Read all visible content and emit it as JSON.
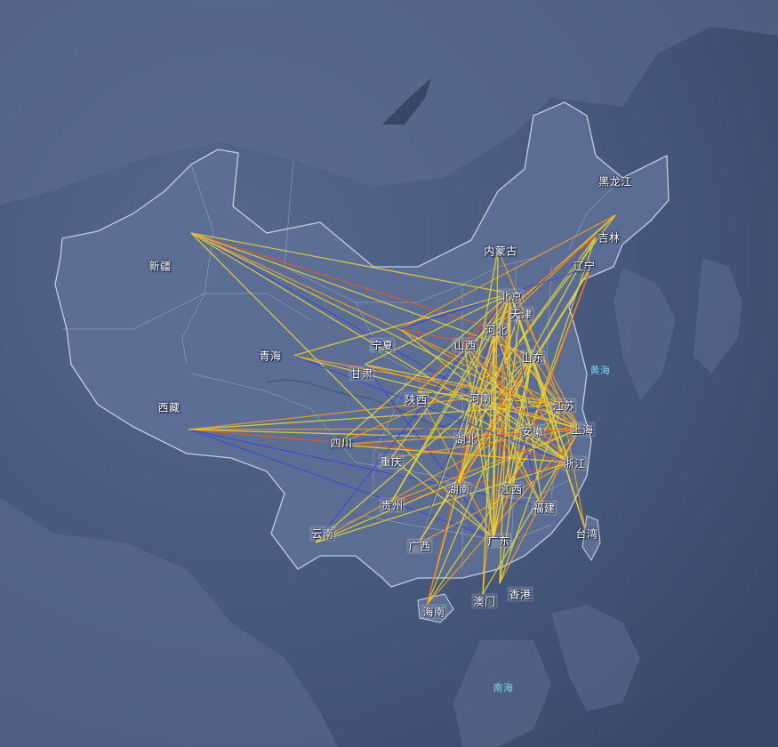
{
  "map": {
    "seas": [
      {
        "id": "yellow-sea",
        "name": "黄海"
      },
      {
        "id": "south-sea",
        "name": "南海"
      }
    ],
    "provinces": [
      {
        "id": "heilongjiang",
        "name": "黑龙江"
      },
      {
        "id": "jilin",
        "name": "吉林"
      },
      {
        "id": "liaoning",
        "name": "辽宁"
      },
      {
        "id": "neimenggu",
        "name": "内蒙古"
      },
      {
        "id": "beijing",
        "name": "北京"
      },
      {
        "id": "tianjin",
        "name": "天津"
      },
      {
        "id": "hebei",
        "name": "河北"
      },
      {
        "id": "shanxi",
        "name": "山西"
      },
      {
        "id": "shandong",
        "name": "山东"
      },
      {
        "id": "ningxia",
        "name": "宁夏"
      },
      {
        "id": "gansu",
        "name": "甘肃"
      },
      {
        "id": "xinjiang",
        "name": "新疆"
      },
      {
        "id": "qinghai",
        "name": "青海"
      },
      {
        "id": "xizang",
        "name": "西藏"
      },
      {
        "id": "shaanxi",
        "name": "陕西"
      },
      {
        "id": "henan",
        "name": "河南"
      },
      {
        "id": "jiangsu",
        "name": "江苏"
      },
      {
        "id": "sichuan",
        "name": "四川"
      },
      {
        "id": "hubei",
        "name": "湖北"
      },
      {
        "id": "anhui",
        "name": "安徽"
      },
      {
        "id": "shanghai",
        "name": "上海"
      },
      {
        "id": "chongqing",
        "name": "重庆"
      },
      {
        "id": "zhejiang",
        "name": "浙江"
      },
      {
        "id": "hunan",
        "name": "湖南"
      },
      {
        "id": "jiangxi",
        "name": "江西"
      },
      {
        "id": "guizhou",
        "name": "贵州"
      },
      {
        "id": "fujian",
        "name": "福建"
      },
      {
        "id": "yunnan",
        "name": "云南"
      },
      {
        "id": "taiwan",
        "name": "台湾"
      },
      {
        "id": "guangxi",
        "name": "广西"
      },
      {
        "id": "guangdong",
        "name": "广东"
      },
      {
        "id": "hongkong",
        "name": "香港"
      },
      {
        "id": "macau",
        "name": "澳门"
      },
      {
        "id": "hainan",
        "name": "海南"
      }
    ],
    "flow_colors": [
      "#e8d63a",
      "#f0a020",
      "#e05a28",
      "#3a44d8"
    ],
    "flows": [
      [
        "xinjiang",
        "beijing",
        0
      ],
      [
        "xinjiang",
        "shanghai",
        0
      ],
      [
        "xinjiang",
        "guangdong",
        0
      ],
      [
        "xinjiang",
        "jiangsu",
        1
      ],
      [
        "xinjiang",
        "henan",
        3
      ],
      [
        "xinjiang",
        "zhejiang",
        0
      ],
      [
        "xinjiang",
        "hebei",
        2
      ],
      [
        "xinjiang",
        "shandong",
        0
      ],
      [
        "xizang",
        "shanghai",
        1
      ],
      [
        "xizang",
        "zhejiang",
        2
      ],
      [
        "xizang",
        "guangdong",
        3
      ],
      [
        "xizang",
        "jiangsu",
        0
      ],
      [
        "xizang",
        "henan",
        1
      ],
      [
        "xizang",
        "fujian",
        3
      ],
      [
        "xizang",
        "hubei",
        0
      ],
      [
        "heilongjiang",
        "hebei",
        1
      ],
      [
        "heilongjiang",
        "shaanxi",
        0
      ],
      [
        "heilongjiang",
        "ningxia",
        1
      ],
      [
        "heilongjiang",
        "henan",
        0
      ],
      [
        "jilin",
        "henan",
        0
      ],
      [
        "jilin",
        "guangdong",
        0
      ],
      [
        "jilin",
        "hunan",
        0
      ],
      [
        "jilin",
        "shanxi",
        2
      ],
      [
        "liaoning",
        "hunan",
        0
      ],
      [
        "liaoning",
        "jiangxi",
        0
      ],
      [
        "liaoning",
        "guangdong",
        2
      ],
      [
        "liaoning",
        "guangxi",
        0
      ],
      [
        "liaoning",
        "ningxia",
        3
      ],
      [
        "ningxia",
        "beijing",
        3
      ],
      [
        "ningxia",
        "shanghai",
        1
      ],
      [
        "ningxia",
        "zhejiang",
        0
      ],
      [
        "ningxia",
        "shandong",
        2
      ],
      [
        "gansu",
        "beijing",
        0
      ],
      [
        "gansu",
        "shanghai",
        1
      ],
      [
        "gansu",
        "jiangsu",
        0
      ],
      [
        "gansu",
        "guangdong",
        3
      ],
      [
        "shaanxi",
        "jiangsu",
        0
      ],
      [
        "shaanxi",
        "guangdong",
        1
      ],
      [
        "shaanxi",
        "beijing",
        2
      ],
      [
        "shaanxi",
        "zhejiang",
        0
      ],
      [
        "sichuan",
        "beijing",
        0
      ],
      [
        "sichuan",
        "shanghai",
        1
      ],
      [
        "sichuan",
        "zhejiang",
        0
      ],
      [
        "sichuan",
        "shandong",
        1
      ],
      [
        "sichuan",
        "jiangsu",
        3
      ],
      [
        "chongqing",
        "shanghai",
        1
      ],
      [
        "chongqing",
        "beijing",
        0
      ],
      [
        "chongqing",
        "guangdong",
        0
      ],
      [
        "guizhou",
        "beijing",
        0
      ],
      [
        "guizhou",
        "shanghai",
        1
      ],
      [
        "guizhou",
        "zhejiang",
        2
      ],
      [
        "guizhou",
        "hebei",
        0
      ],
      [
        "yunnan",
        "beijing",
        3
      ],
      [
        "yunnan",
        "shanghai",
        0
      ],
      [
        "yunnan",
        "jiangsu",
        1
      ],
      [
        "yunnan",
        "shandong",
        0
      ],
      [
        "yunnan",
        "zhejiang",
        0
      ],
      [
        "guangxi",
        "beijing",
        0
      ],
      [
        "guangxi",
        "zhejiang",
        1
      ],
      [
        "guangxi",
        "shandong",
        0
      ],
      [
        "guangxi",
        "hebei",
        3
      ],
      [
        "hainan",
        "beijing",
        0
      ],
      [
        "hainan",
        "shanghai",
        1
      ],
      [
        "hainan",
        "jiangsu",
        0
      ],
      [
        "hainan",
        "shandong",
        0
      ],
      [
        "hainan",
        "hebei",
        2
      ],
      [
        "macau",
        "shanghai",
        0
      ],
      [
        "macau",
        "beijing",
        1
      ],
      [
        "macau",
        "hebei",
        0
      ],
      [
        "hongkong",
        "beijing",
        0
      ],
      [
        "hongkong",
        "shanghai",
        1
      ],
      [
        "hongkong",
        "shandong",
        0
      ],
      [
        "hongkong",
        "jiangsu",
        0
      ],
      [
        "guangdong",
        "beijing",
        1
      ],
      [
        "guangdong",
        "shandong",
        0
      ],
      [
        "guangdong",
        "hebei",
        0
      ],
      [
        "guangdong",
        "tianjin",
        2
      ],
      [
        "fujian",
        "beijing",
        0
      ],
      [
        "fujian",
        "hebei",
        3
      ],
      [
        "fujian",
        "shanxi",
        0
      ],
      [
        "fujian",
        "henan",
        1
      ],
      [
        "taiwan",
        "beijing",
        0
      ],
      [
        "taiwan",
        "shandong",
        0
      ],
      [
        "taiwan",
        "jiangsu",
        1
      ],
      [
        "zhejiang",
        "beijing",
        0
      ],
      [
        "zhejiang",
        "hebei",
        1
      ],
      [
        "zhejiang",
        "hubei",
        2
      ],
      [
        "zhejiang",
        "shanxi",
        0
      ],
      [
        "jiangxi",
        "beijing",
        0
      ],
      [
        "jiangxi",
        "shandong",
        0
      ],
      [
        "jiangxi",
        "hebei",
        2
      ],
      [
        "hunan",
        "beijing",
        1
      ],
      [
        "hunan",
        "hebei",
        0
      ],
      [
        "hunan",
        "tianjin",
        0
      ],
      [
        "hunan",
        "shandong",
        2
      ],
      [
        "hubei",
        "beijing",
        0
      ],
      [
        "hubei",
        "shanghai",
        2
      ],
      [
        "hubei",
        "shandong",
        0
      ],
      [
        "anhui",
        "beijing",
        3
      ],
      [
        "anhui",
        "hebei",
        0
      ],
      [
        "anhui",
        "shanxi",
        0
      ],
      [
        "henan",
        "shanghai",
        1
      ],
      [
        "henan",
        "guangdong",
        0
      ],
      [
        "henan",
        "zhejiang",
        0
      ],
      [
        "shanxi",
        "guangdong",
        0
      ],
      [
        "shanxi",
        "shanghai",
        1
      ],
      [
        "shanxi",
        "zhejiang",
        2
      ],
      [
        "hebei",
        "shanghai",
        0
      ],
      [
        "hebei",
        "guangdong",
        0
      ],
      [
        "hebei",
        "jiangsu",
        1
      ],
      [
        "shandong",
        "guangdong",
        0
      ],
      [
        "shandong",
        "shanghai",
        1
      ],
      [
        "shandong",
        "zhejiang",
        0
      ],
      [
        "beijing",
        "shanghai",
        3
      ],
      [
        "beijing",
        "zhejiang",
        0
      ],
      [
        "tianjin",
        "shanghai",
        1
      ],
      [
        "tianjin",
        "guangdong",
        0
      ],
      [
        "qinghai",
        "shanghai",
        0
      ],
      [
        "qinghai",
        "jiangsu",
        1
      ],
      [
        "qinghai",
        "beijing",
        0
      ],
      [
        "qinghai",
        "zhejiang",
        3
      ],
      [
        "neimenggu",
        "hubei",
        0
      ],
      [
        "neimenggu",
        "jiangsu",
        1
      ],
      [
        "neimenggu",
        "guangdong",
        0
      ]
    ]
  }
}
